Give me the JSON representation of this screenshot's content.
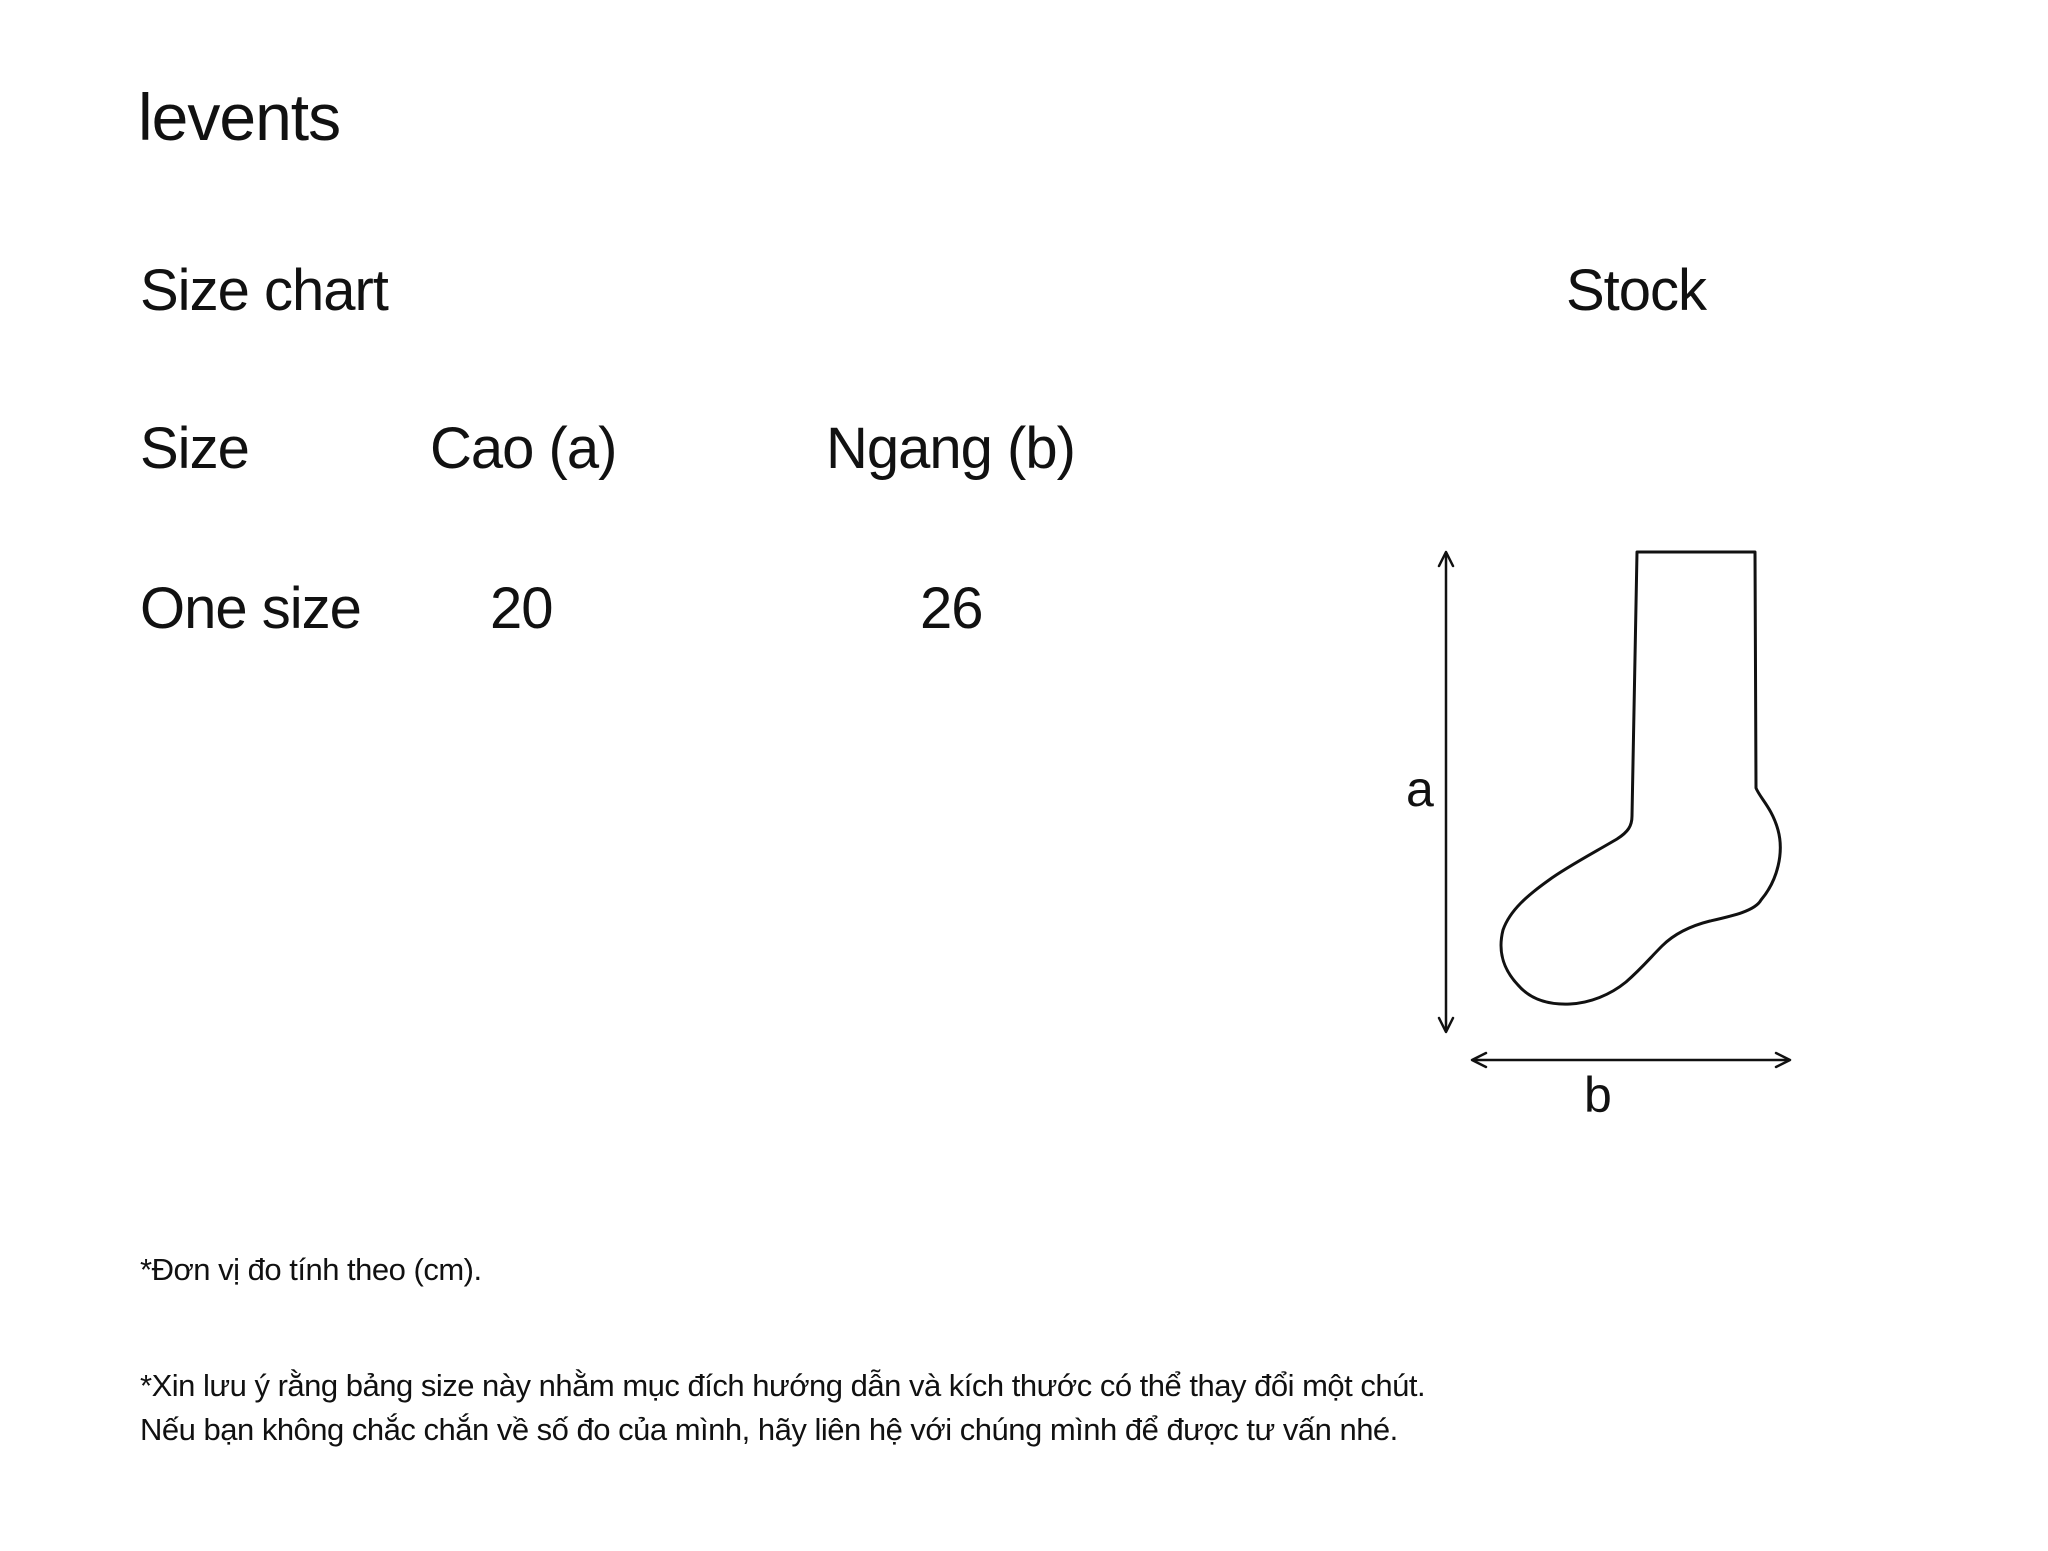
{
  "brand": {
    "logo_text": "levents"
  },
  "size_chart": {
    "title": "Size chart",
    "product": "Stock",
    "columns": [
      "Size",
      "Cao (a)",
      "Ngang (b)"
    ],
    "rows": [
      {
        "size": "One size",
        "a": "20",
        "b": "26"
      }
    ]
  },
  "diagram": {
    "height_label": "a",
    "width_label": "b"
  },
  "notes": {
    "unit": "*Đơn vị đo tính theo (cm).",
    "disclaimer_line1": "*Xin lưu ý rằng bảng size này nhằm mục đích hướng dẫn và kích thước có thể thay đổi một chút.",
    "disclaimer_line2": "Nếu bạn không chắc chắn về số đo của mình, hãy liên hệ với chúng mình để được tư vấn nhé."
  }
}
